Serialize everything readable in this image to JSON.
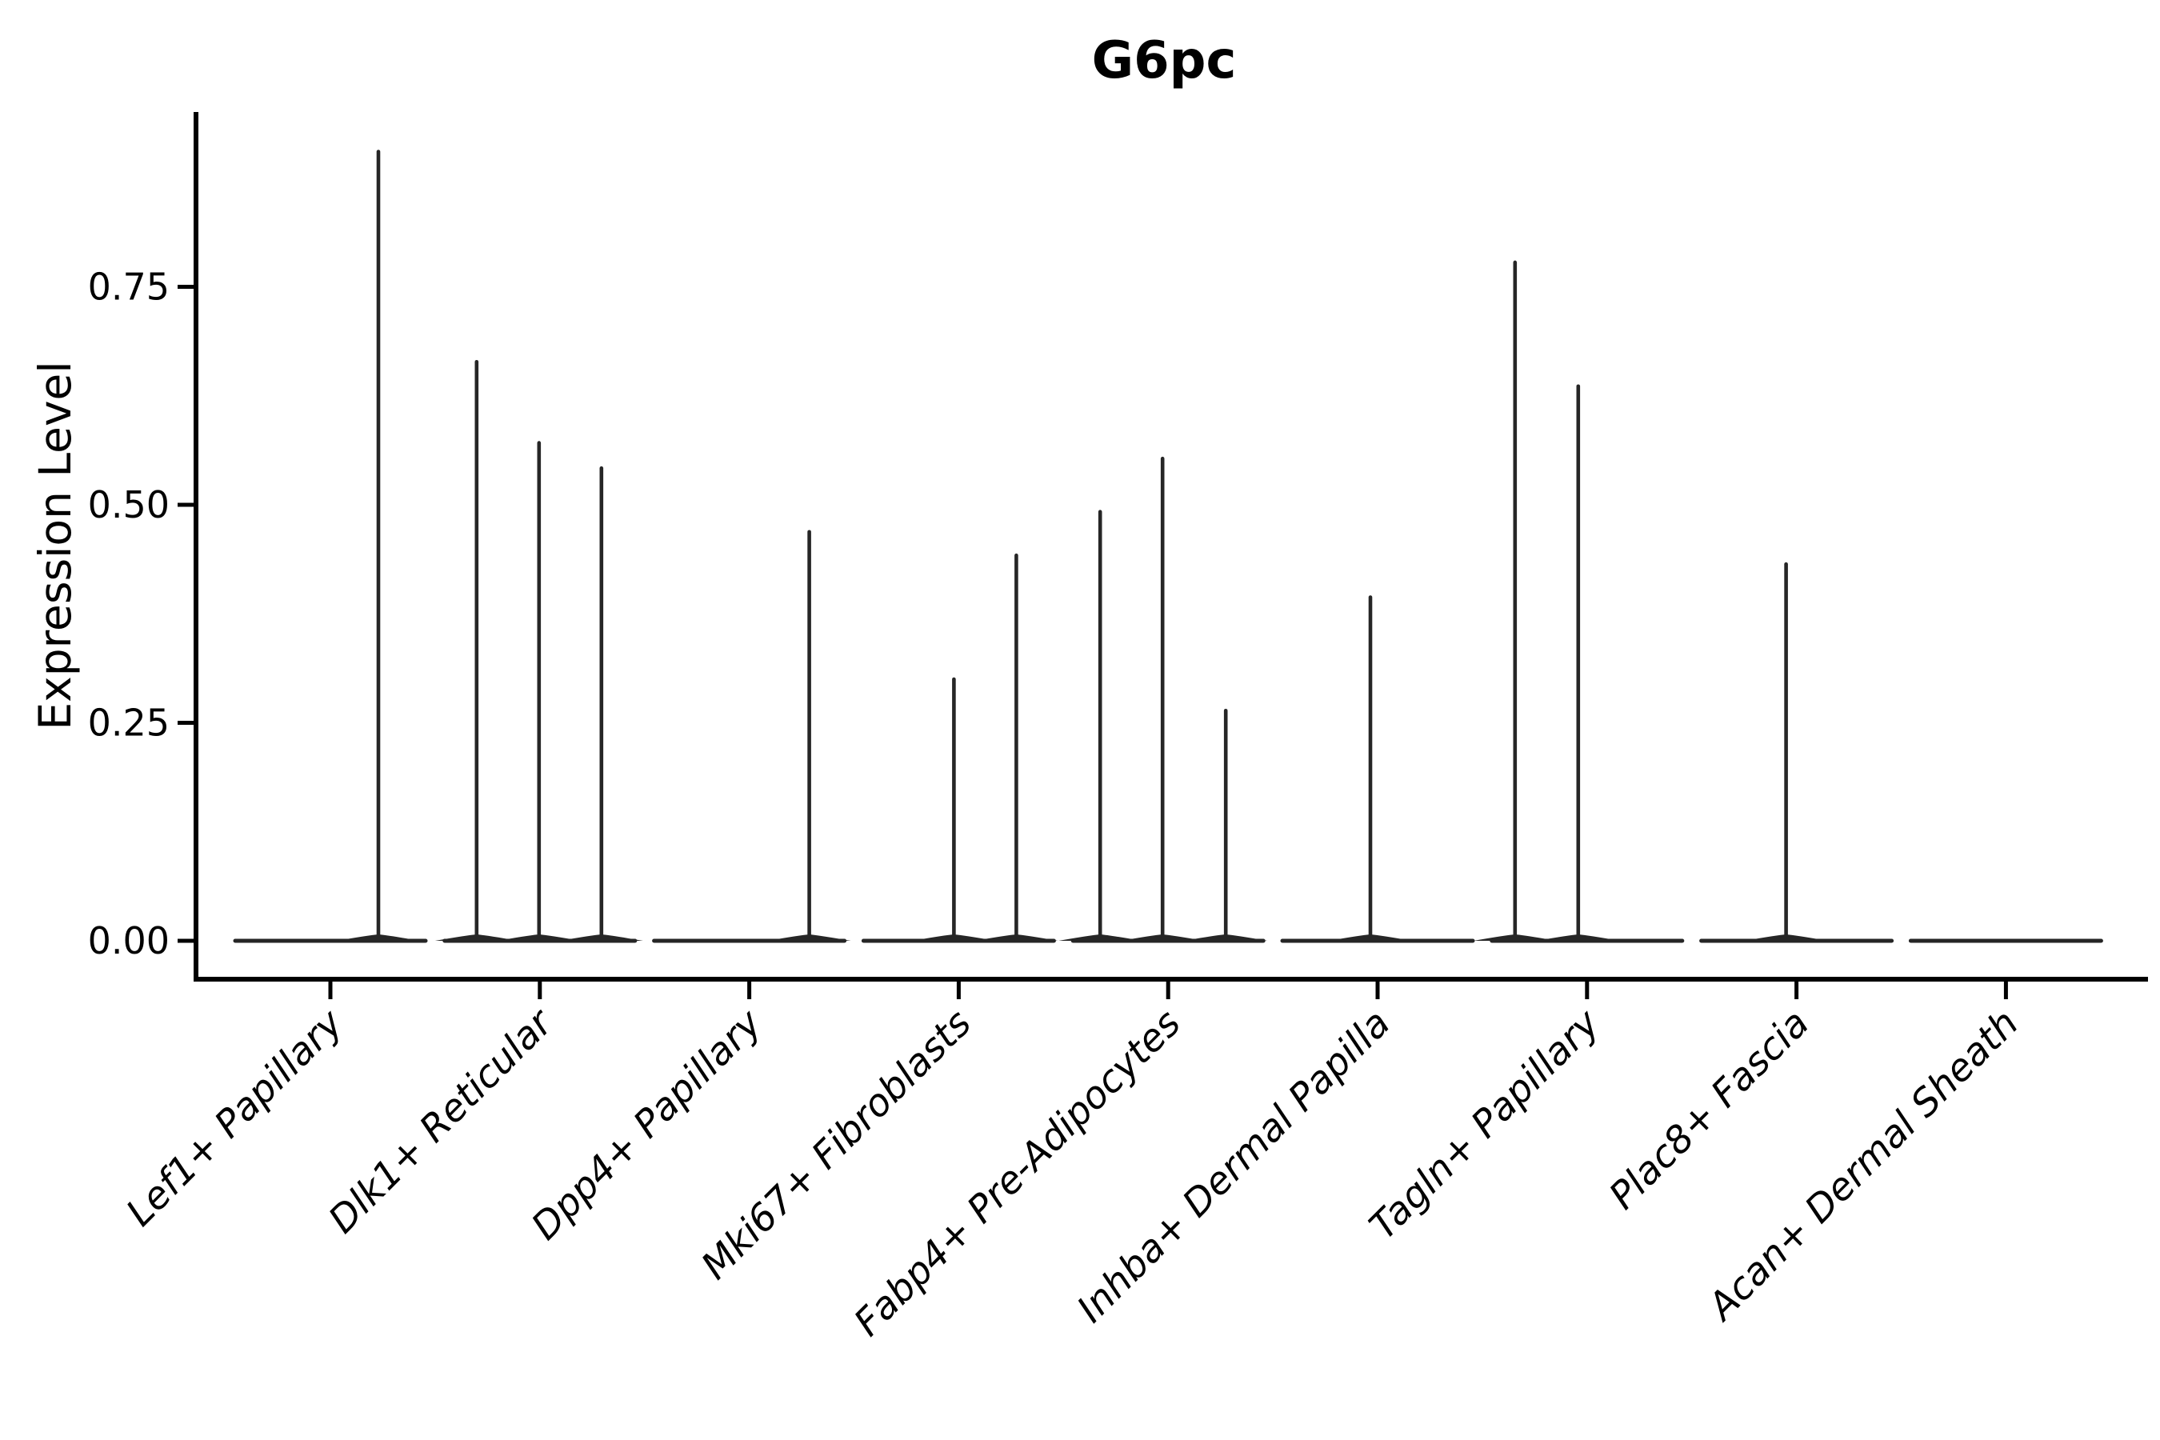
{
  "figure": {
    "background_color": "#ffffff",
    "line_color": "#262626",
    "spine_color": "#000000",
    "text_color": "#000000"
  },
  "chart_data": {
    "type": "violin",
    "title": "G6pc",
    "xlabel": "",
    "ylabel": "Expression Level",
    "ylim": [
      0,
      0.95
    ],
    "yticks": [
      0,
      0.25,
      0.5,
      0.75
    ],
    "ytick_labels": [
      "0.00",
      "0.25",
      "0.50",
      "0.75"
    ],
    "grid": false,
    "legend_position": "none",
    "x_label_rotation_deg": 45,
    "categories": [
      "Lef1+ Papillary",
      "Dlk1+ Reticular",
      "Dpp4+ Papillary",
      "Mki67+ Fibroblasts",
      "Fabp4+ Pre-Adipocytes",
      "Inhba+ Dermal Papilla",
      "Tagln+ Papillary",
      "Plac8+ Fascia",
      "Acan+ Dermal Sheath"
    ],
    "note": "Needle-thin violins flattened at 0; up to 3 dodged sub-violins per cluster. Each spike entry: dx = horizontal dodge offset (px at 2700px figure width) from cluster center, max = expression value at spike top.",
    "violins": [
      {
        "category": "Lef1+ Papillary",
        "spikes": [
          {
            "dx": 60,
            "max": 0.905
          }
        ]
      },
      {
        "category": "Dlk1+ Reticular",
        "spikes": [
          {
            "dx": -79,
            "max": 0.664
          },
          {
            "dx": -1,
            "max": 0.571
          },
          {
            "dx": 77,
            "max": 0.542
          }
        ]
      },
      {
        "category": "Dpp4+ Papillary",
        "spikes": [
          {
            "dx": 75,
            "max": 0.469
          }
        ]
      },
      {
        "category": "Mki67+ Fibroblasts",
        "spikes": [
          {
            "dx": -6,
            "max": 0.3
          },
          {
            "dx": 72,
            "max": 0.442
          }
        ]
      },
      {
        "category": "Fabp4+ Pre-Adipocytes",
        "spikes": [
          {
            "dx": -85,
            "max": 0.492
          },
          {
            "dx": -7,
            "max": 0.553
          },
          {
            "dx": 72,
            "max": 0.264
          }
        ]
      },
      {
        "category": "Inhba+ Dermal Papilla",
        "spikes": [
          {
            "dx": -9,
            "max": 0.394
          }
        ]
      },
      {
        "category": "Tagln+ Papillary",
        "spikes": [
          {
            "dx": -90,
            "max": 0.778
          },
          {
            "dx": -11,
            "max": 0.636
          }
        ]
      },
      {
        "category": "Plac8+ Fascia",
        "spikes": [
          {
            "dx": -13,
            "max": 0.432
          }
        ]
      },
      {
        "category": "Acan+ Dermal Sheath",
        "spikes": []
      }
    ]
  }
}
